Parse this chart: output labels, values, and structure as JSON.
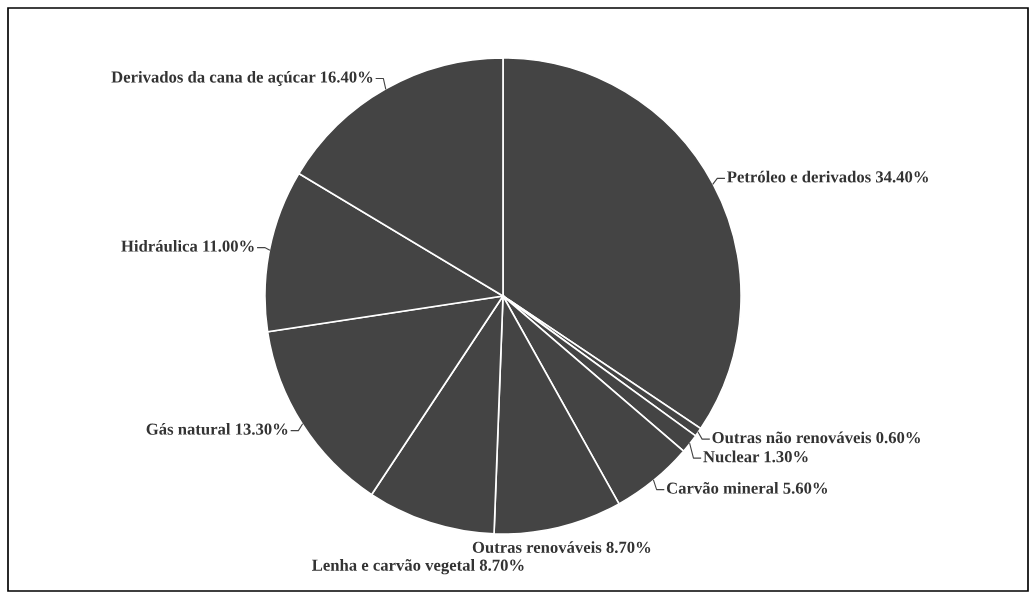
{
  "chart_data": {
    "type": "pie",
    "categories": [
      "Petróleo e derivados",
      "Outras não renováveis",
      "Nuclear",
      "Carvão mineral",
      "Outras renováveis",
      "Lenha e carvão vegetal",
      "Gás natural",
      "Hidráulica",
      "Derivados da cana de açúcar"
    ],
    "values": [
      34.4,
      0.6,
      1.3,
      5.6,
      8.7,
      8.7,
      13.3,
      11.0,
      16.4
    ],
    "value_labels": [
      "34.40%",
      "0.60%",
      "1.30%",
      "5.60%",
      "8.70%",
      "8.70%",
      "13.30%",
      "11.00%",
      "16.40%"
    ],
    "colors": [
      "#444444",
      "#444444",
      "#444444",
      "#444444",
      "#444444",
      "#444444",
      "#444444",
      "#444444",
      "#444444"
    ],
    "legend": false
  }
}
